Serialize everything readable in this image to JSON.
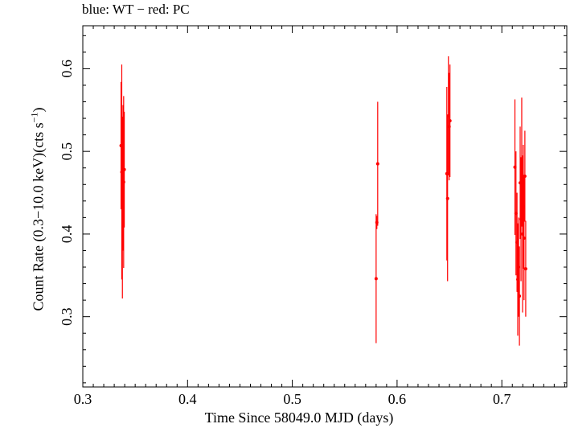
{
  "chart_data": {
    "type": "scatter",
    "title": "blue: WT − red: PC",
    "xlabel": "Time Since 58049.0 MJD (days)",
    "ylabel": "Count Rate (0.3−10.0 keV)(cts s",
    "ylabel_sup": "−1",
    "ylabel_tail": ")",
    "xlim": [
      0.3,
      0.762
    ],
    "ylim": [
      0.215,
      0.652
    ],
    "x_ticks": [
      0.3,
      0.4,
      0.5,
      0.6,
      0.7
    ],
    "x_tick_labels": [
      "0.3",
      "0.4",
      "0.5",
      "0.6",
      "0.7"
    ],
    "y_ticks": [
      0.3,
      0.4,
      0.5,
      0.6
    ],
    "y_tick_labels": [
      "0.3",
      "0.4",
      "0.5",
      "0.6"
    ],
    "grid": false,
    "series": [
      {
        "name": "PC",
        "color": "#ff0000",
        "points": [
          {
            "x": 0.3365,
            "y": 0.507,
            "err": 0.077
          },
          {
            "x": 0.3372,
            "y": 0.475,
            "err": 0.13
          },
          {
            "x": 0.3378,
            "y": 0.432,
            "err": 0.11
          },
          {
            "x": 0.3384,
            "y": 0.468,
            "err": 0.088
          },
          {
            "x": 0.339,
            "y": 0.463,
            "err": 0.104
          },
          {
            "x": 0.3396,
            "y": 0.478,
            "err": 0.07
          },
          {
            "x": 0.58,
            "y": 0.346,
            "err": 0.078
          },
          {
            "x": 0.5807,
            "y": 0.414,
            "err": 0.008
          },
          {
            "x": 0.5815,
            "y": 0.485,
            "err": 0.075
          },
          {
            "x": 0.6475,
            "y": 0.473,
            "err": 0.105
          },
          {
            "x": 0.6482,
            "y": 0.443,
            "err": 0.1
          },
          {
            "x": 0.649,
            "y": 0.543,
            "err": 0.072
          },
          {
            "x": 0.6497,
            "y": 0.53,
            "err": 0.065
          },
          {
            "x": 0.6505,
            "y": 0.537,
            "err": 0.068
          },
          {
            "x": 0.7125,
            "y": 0.481,
            "err": 0.082
          },
          {
            "x": 0.7135,
            "y": 0.425,
            "err": 0.075
          },
          {
            "x": 0.7145,
            "y": 0.39,
            "err": 0.06
          },
          {
            "x": 0.7152,
            "y": 0.345,
            "err": 0.068
          },
          {
            "x": 0.716,
            "y": 0.36,
            "err": 0.06
          },
          {
            "x": 0.7168,
            "y": 0.325,
            "err": 0.06
          },
          {
            "x": 0.7175,
            "y": 0.462,
            "err": 0.068
          },
          {
            "x": 0.7183,
            "y": 0.418,
            "err": 0.075
          },
          {
            "x": 0.719,
            "y": 0.487,
            "err": 0.078
          },
          {
            "x": 0.7198,
            "y": 0.4,
            "err": 0.095
          },
          {
            "x": 0.7205,
            "y": 0.433,
            "err": 0.075
          },
          {
            "x": 0.7212,
            "y": 0.395,
            "err": 0.075
          },
          {
            "x": 0.722,
            "y": 0.47,
            "err": 0.055
          },
          {
            "x": 0.7228,
            "y": 0.358,
            "err": 0.058
          }
        ]
      }
    ]
  }
}
